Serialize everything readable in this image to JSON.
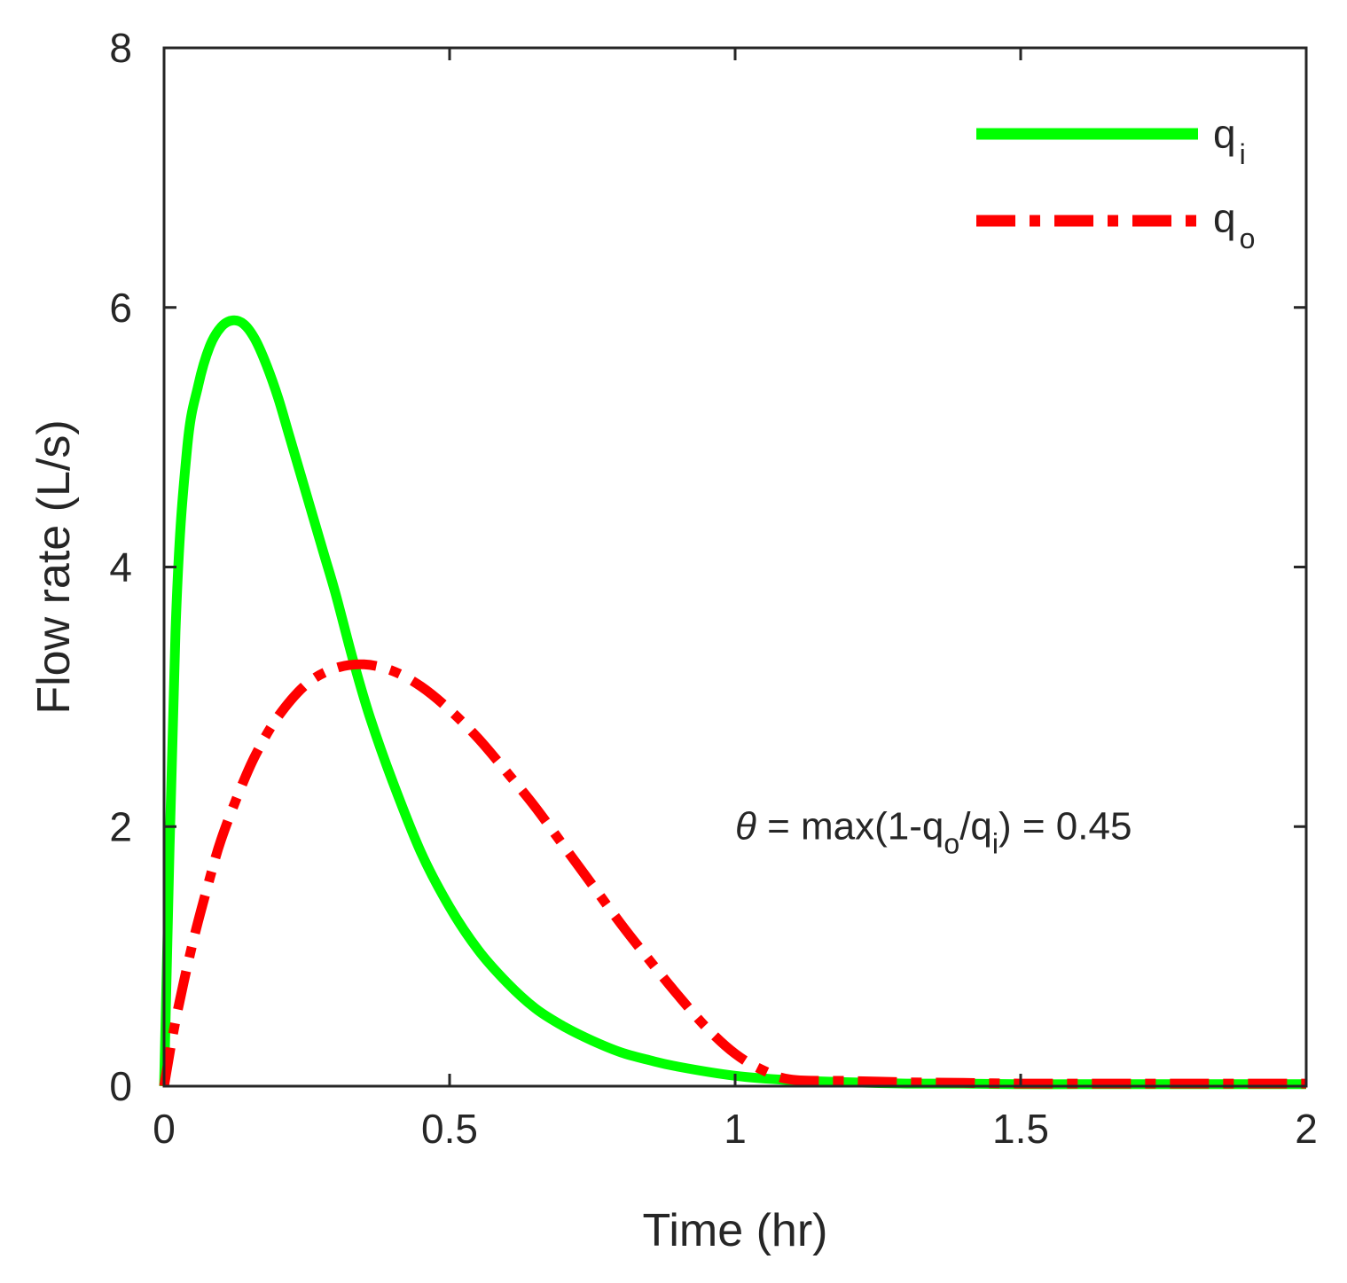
{
  "chart_data": {
    "type": "line",
    "title": "",
    "xlabel": "Time (hr)",
    "ylabel": "Flow rate (L/s)",
    "xlim": [
      0,
      2
    ],
    "ylim": [
      0,
      8
    ],
    "xticks": [
      0,
      0.5,
      1,
      1.5,
      2
    ],
    "xtick_labels": [
      "0",
      "0.5",
      "1",
      "1.5",
      "2"
    ],
    "yticks": [
      0,
      2,
      4,
      6,
      8
    ],
    "ytick_labels": [
      "0",
      "2",
      "4",
      "6",
      "8"
    ],
    "grid": false,
    "legend_position": "top-right",
    "series": [
      {
        "name": "q_i",
        "label_base": "q",
        "label_sub": "i",
        "color": "#00ff00",
        "style": "solid",
        "x": [
          0,
          0.02,
          0.04,
          0.06,
          0.08,
          0.1,
          0.12,
          0.14,
          0.16,
          0.18,
          0.2,
          0.22,
          0.25,
          0.28,
          0.3,
          0.33,
          0.36,
          0.4,
          0.45,
          0.5,
          0.55,
          0.6,
          0.65,
          0.7,
          0.75,
          0.8,
          0.85,
          0.9,
          1.0,
          1.1,
          1.2,
          1.3,
          1.4,
          1.5,
          1.6,
          1.7,
          1.8,
          1.9,
          2.0
        ],
        "y": [
          0,
          3.5,
          4.9,
          5.4,
          5.7,
          5.85,
          5.9,
          5.87,
          5.75,
          5.55,
          5.3,
          5.0,
          4.55,
          4.1,
          3.8,
          3.3,
          2.85,
          2.35,
          1.8,
          1.38,
          1.05,
          0.8,
          0.6,
          0.46,
          0.35,
          0.26,
          0.2,
          0.15,
          0.08,
          0.045,
          0.03,
          0.02,
          0.02,
          0.015,
          0.015,
          0.015,
          0.015,
          0.015,
          0.015
        ]
      },
      {
        "name": "q_o",
        "label_base": "q",
        "label_sub": "o",
        "color": "#ff0000",
        "style": "dashdot",
        "x": [
          0,
          0.02,
          0.05,
          0.08,
          0.1,
          0.13,
          0.16,
          0.2,
          0.25,
          0.3,
          0.35,
          0.4,
          0.45,
          0.5,
          0.55,
          0.6,
          0.65,
          0.7,
          0.75,
          0.8,
          0.85,
          0.9,
          0.95,
          1.0,
          1.05,
          1.1,
          1.2,
          1.3,
          1.4,
          1.5,
          1.6,
          1.7,
          1.8,
          1.9,
          2.0
        ],
        "y": [
          0,
          0.5,
          1.1,
          1.6,
          1.9,
          2.25,
          2.55,
          2.85,
          3.1,
          3.22,
          3.25,
          3.2,
          3.08,
          2.9,
          2.68,
          2.42,
          2.15,
          1.85,
          1.55,
          1.25,
          0.97,
          0.7,
          0.45,
          0.25,
          0.12,
          0.05,
          0.04,
          0.03,
          0.025,
          0.02,
          0.02,
          0.02,
          0.02,
          0.02,
          0.02
        ]
      }
    ],
    "annotation": {
      "theta": "θ",
      "part1": " = max(1-q",
      "sub1": "o",
      "part2": "/q",
      "sub2": "i",
      "part3": ") = 0.45",
      "x": 1.0,
      "y": 2.0
    }
  }
}
